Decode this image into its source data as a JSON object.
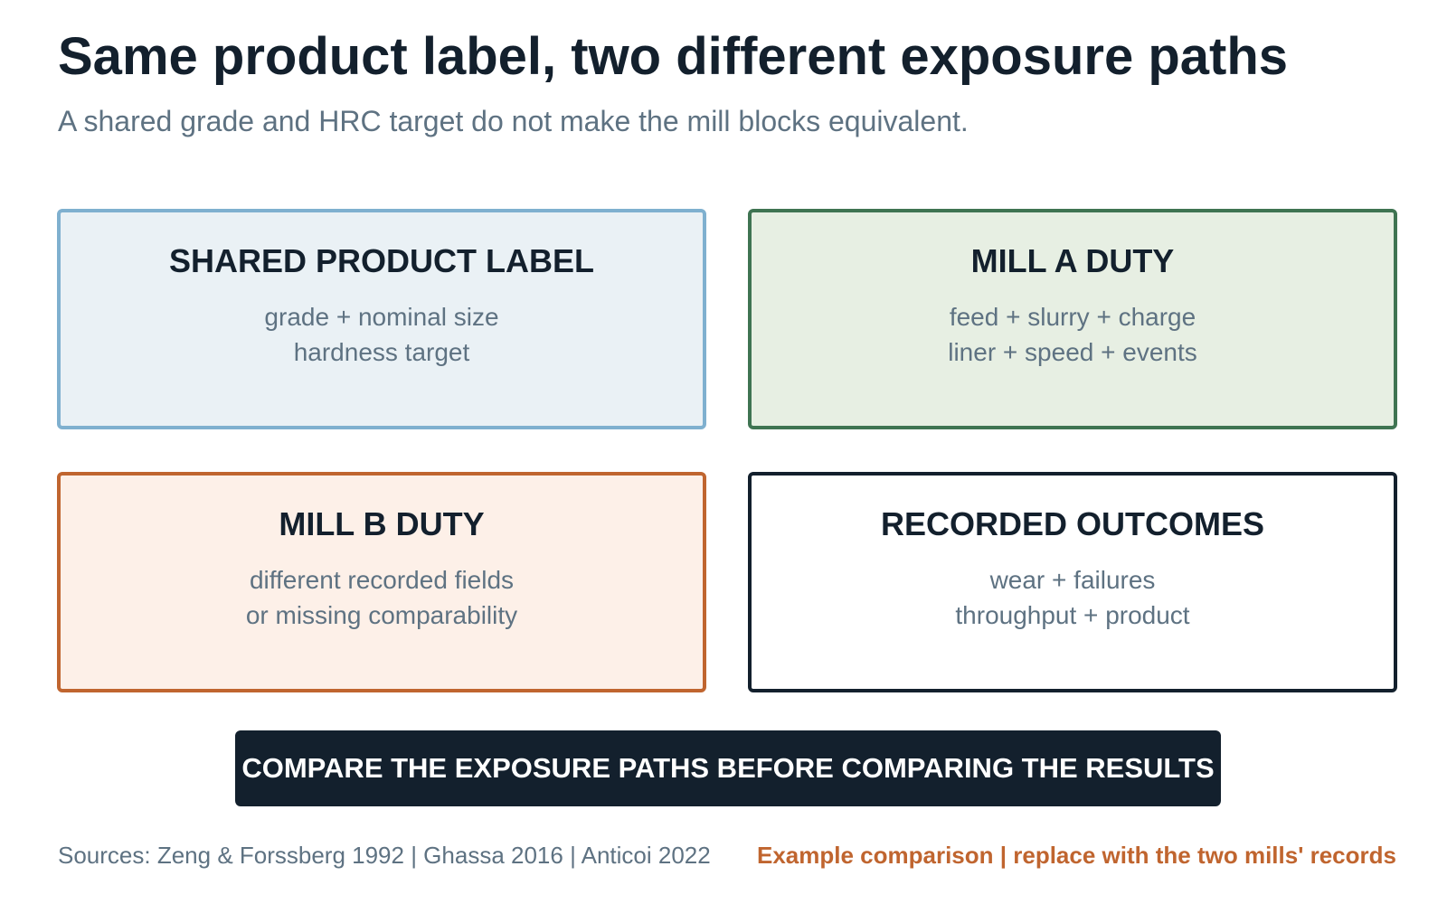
{
  "header": {
    "title": "Same product label, two different exposure paths",
    "subtitle": "A shared grade and HRC target do not make the mill blocks equivalent."
  },
  "cards": [
    {
      "title": "SHARED PRODUCT LABEL",
      "lines": [
        "grade + nominal size",
        "hardness target"
      ],
      "border_color": "#7fb0cf",
      "fill_color": "#eaf1f5"
    },
    {
      "title": "MILL A DUTY",
      "lines": [
        "feed + slurry + charge",
        "liner + speed + events"
      ],
      "border_color": "#3f7452",
      "fill_color": "#e7efe3"
    },
    {
      "title": "MILL B DUTY",
      "lines": [
        "different recorded fields",
        "or missing comparability"
      ],
      "border_color": "#c0652f",
      "fill_color": "#fdf0e8"
    },
    {
      "title": "RECORDED OUTCOMES",
      "lines": [
        "wear + failures",
        "throughput + product"
      ],
      "border_color": "#13202d",
      "fill_color": "#ffffff"
    }
  ],
  "banner": {
    "text": "COMPARE THE EXPOSURE PATHS BEFORE COMPARING THE RESULTS"
  },
  "footer": {
    "sources": "Sources: Zeng & Forssberg 1992 | Ghassa 2016 | Anticoi 2022",
    "note": "Example comparison | replace with the two mills' records",
    "note_color": "#c0652f"
  }
}
